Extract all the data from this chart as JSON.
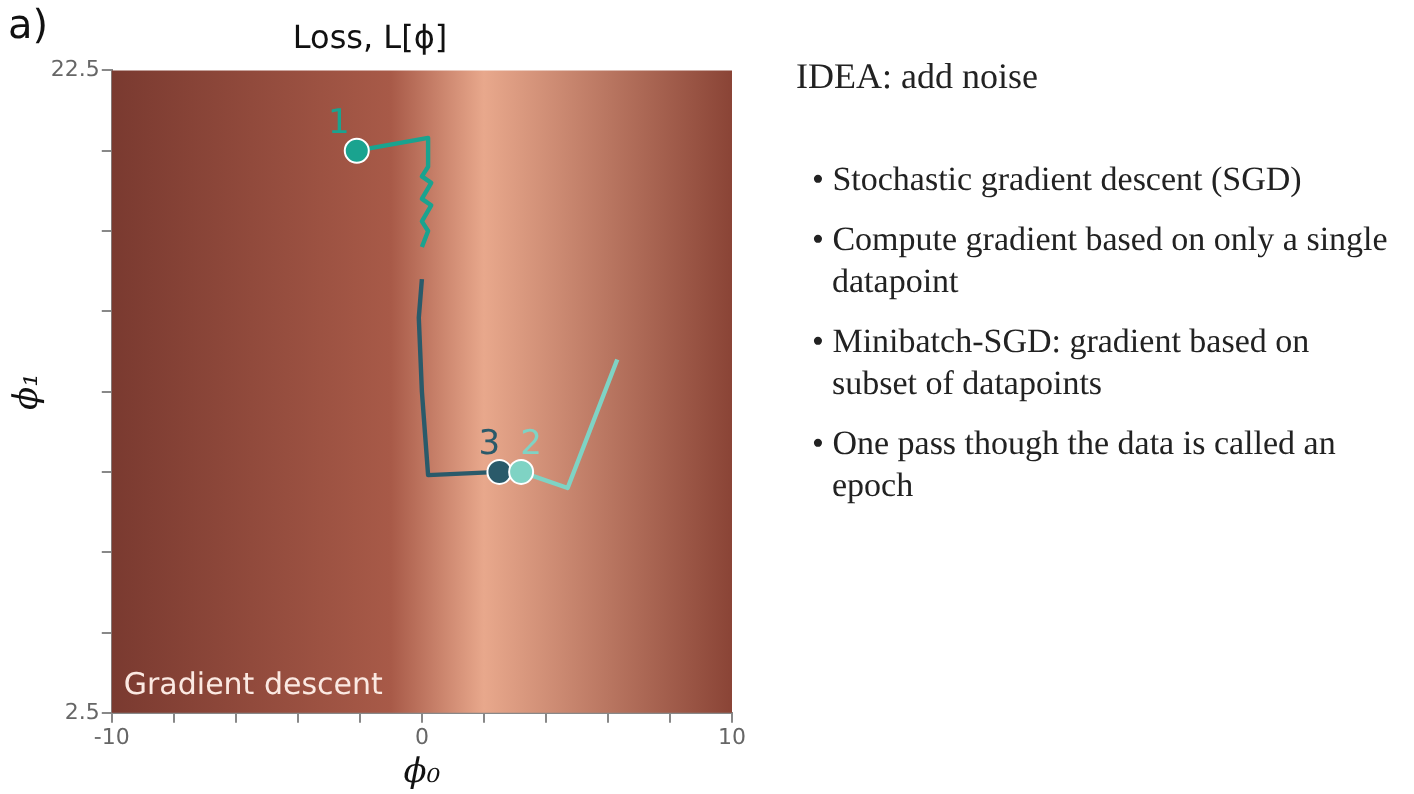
{
  "chart_data": [
    {
      "type": "line",
      "title": "Loss, L[ϕ]",
      "xlabel": "ϕ₀",
      "ylabel": "ϕ₁",
      "annotations": [
        "a)",
        "Gradient descent"
      ],
      "xlim": [
        -10,
        10
      ],
      "ylim": [
        2.5,
        22.5
      ],
      "xticks": [
        -10,
        {
          "value": -8,
          "label": null
        },
        {
          "value": -6,
          "label": null
        },
        {
          "value": -4,
          "label": null
        },
        {
          "value": -2,
          "label": null
        },
        0,
        {
          "value": 2,
          "label": null
        },
        {
          "value": 4,
          "label": null
        },
        {
          "value": 6,
          "label": null
        },
        {
          "value": 8,
          "label": null
        },
        10
      ],
      "yticks": [
        2.5,
        {
          "value": 5,
          "label": null
        },
        {
          "value": 7.5,
          "label": null
        },
        {
          "value": 10,
          "label": null
        },
        {
          "value": 12.5,
          "label": null
        },
        {
          "value": 15,
          "label": null
        },
        {
          "value": 17.5,
          "label": null
        },
        {
          "value": 20,
          "label": null
        },
        22.5
      ],
      "grid": false,
      "legend": false,
      "marker": "none",
      "series": [
        {
          "name": "1",
          "color": "#1aa38f",
          "x": [
            -2.1,
            0.2,
            0.2,
            0.0,
            0.3,
            0.0,
            0.3,
            0.0,
            0.2,
            0.0
          ],
          "values": [
            20.0,
            20.4,
            19.5,
            19.2,
            19.0,
            18.5,
            18.3,
            17.8,
            17.5,
            17.0
          ]
        },
        {
          "name": "2",
          "color": "#7fd3c4",
          "x": [
            3.2,
            4.7,
            6.3
          ],
          "values": [
            10.0,
            9.5,
            13.5
          ]
        },
        {
          "name": "3",
          "color": "#2a5a6a",
          "x": [
            2.5,
            0.2,
            0.0,
            -0.1,
            0.0
          ],
          "values": [
            10.0,
            9.9,
            12.5,
            14.8,
            16.0
          ]
        }
      ]
    },
    {
      "type": "other",
      "title": "IDEA:  add noise",
      "annotations": [
        "• Stochastic gradient descent (SGD)",
        "• Compute gradient based on only a single datapoint",
        "• Minibatch-SGD: gradient based on subset of datapoints",
        "• One pass though the data is called an epoch"
      ]
    }
  ]
}
